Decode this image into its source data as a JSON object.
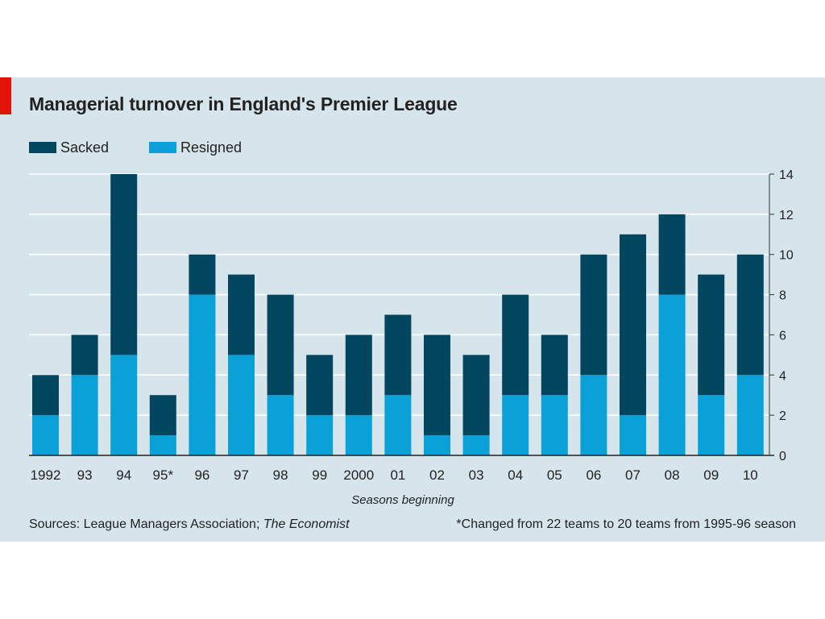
{
  "title": "Managerial turnover in England's Premier League",
  "colors": {
    "sacked": "#03465f",
    "resigned": "#0aa0d8",
    "background": "#d6e4eb",
    "accent": "#e3120b",
    "grid": "#ffffff"
  },
  "legend": [
    {
      "label": "Sacked",
      "color": "#03465f"
    },
    {
      "label": "Resigned",
      "color": "#0aa0d8"
    }
  ],
  "xaxis_title": "Seasons beginning",
  "source": {
    "prefix": "Sources: League Managers Association; ",
    "italic": "The Economist"
  },
  "footnote": "*Changed from 22 teams to 20 teams from 1995-96 season",
  "chart_data": {
    "type": "bar",
    "stacked": true,
    "categories": [
      "1992",
      "93",
      "94",
      "95*",
      "96",
      "97",
      "98",
      "99",
      "2000",
      "01",
      "02",
      "03",
      "04",
      "05",
      "06",
      "07",
      "08",
      "09",
      "10"
    ],
    "series": [
      {
        "name": "Resigned",
        "values": [
          2,
          4,
          5,
          1,
          8,
          5,
          3,
          2,
          2,
          3,
          1,
          1,
          3,
          3,
          4,
          2,
          8,
          3,
          4
        ]
      },
      {
        "name": "Sacked",
        "values": [
          2,
          2,
          9,
          2,
          2,
          4,
          5,
          3,
          4,
          4,
          5,
          4,
          5,
          3,
          6,
          9,
          4,
          6,
          6
        ]
      }
    ],
    "y_ticks": [
      0,
      2,
      4,
      6,
      8,
      10,
      12,
      14
    ],
    "ylim": [
      0,
      14
    ],
    "y_axis_side": "right",
    "grid": true,
    "legend_position": "top-left"
  }
}
